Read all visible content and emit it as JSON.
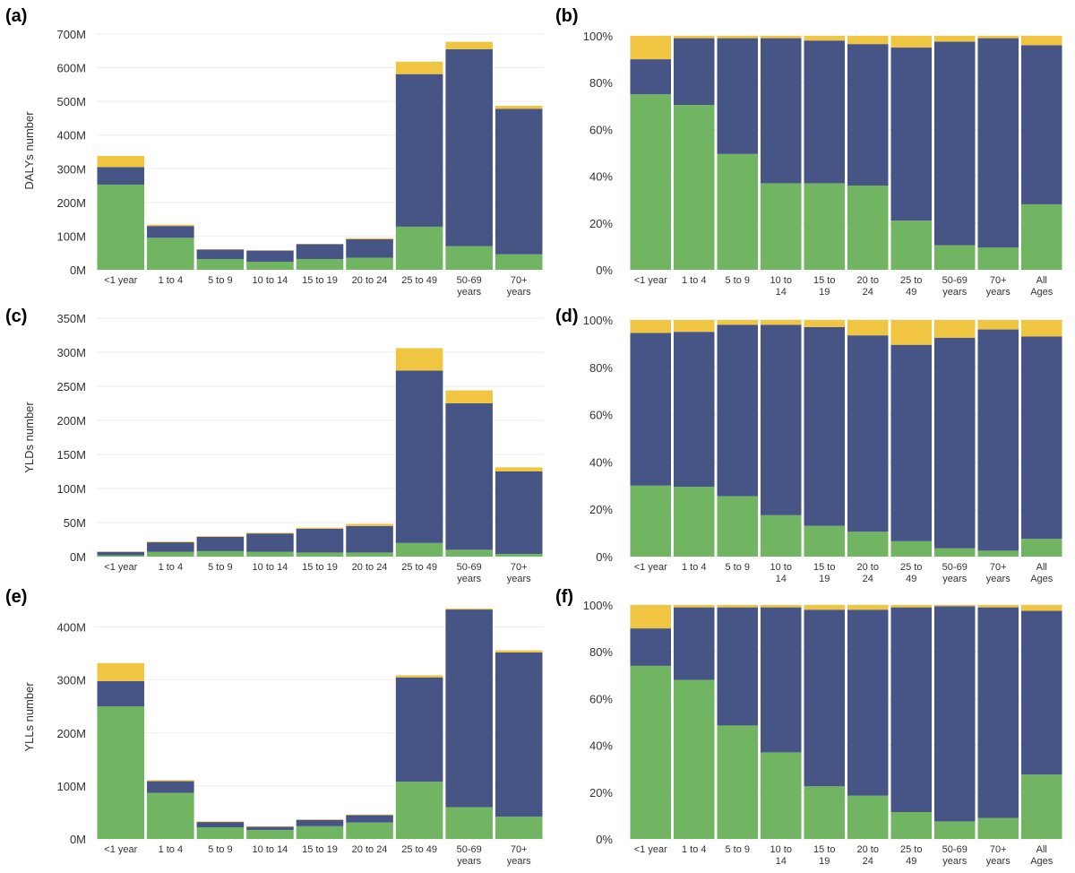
{
  "colors": {
    "green": "#71b462",
    "navy": "#475486",
    "yellow": "#efc541"
  },
  "chart_data": [
    {
      "panel": "(a)",
      "type": "bar",
      "stacked": true,
      "normalized": false,
      "ylabel": "DALYs number",
      "ylim": [
        0,
        700
      ],
      "yticks": [
        0,
        100,
        200,
        300,
        400,
        500,
        600,
        700
      ],
      "ytick_labels": [
        "0M",
        "100M",
        "200M",
        "300M",
        "400M",
        "500M",
        "600M",
        "700M"
      ],
      "categories": [
        "<1 year",
        "1 to 4",
        "5 to 9",
        "10 to 14",
        "15 to 19",
        "20 to 24",
        "25 to 49",
        "50-69\nyears",
        "70+\nyears"
      ],
      "series": [
        {
          "name": "green",
          "color": "#71b462",
          "values": [
            253,
            95,
            32,
            24,
            32,
            36,
            128,
            70,
            46
          ]
        },
        {
          "name": "navy",
          "color": "#475486",
          "values": [
            52,
            35,
            28,
            33,
            44,
            55,
            453,
            585,
            432
          ]
        },
        {
          "name": "yellow",
          "color": "#efc541",
          "values": [
            33,
            4,
            1,
            1,
            1,
            3,
            37,
            22,
            9
          ]
        }
      ]
    },
    {
      "panel": "(b)",
      "type": "bar",
      "stacked": true,
      "normalized": true,
      "ylabel": "",
      "ylim": [
        0,
        100
      ],
      "yticks": [
        0,
        20,
        40,
        60,
        80,
        100
      ],
      "ytick_labels": [
        "0%",
        "20%",
        "40%",
        "60%",
        "80%",
        "100%"
      ],
      "categories": [
        "<1 year",
        "1 to 4",
        "5 to 9",
        "10 to\n14",
        "15 to\n19",
        "20 to\n24",
        "25 to\n49",
        "50-69\nyears",
        "70+\nyears",
        "All\nAges"
      ],
      "series": [
        {
          "name": "green",
          "color": "#71b462",
          "values": [
            75,
            70.5,
            49.5,
            37,
            37,
            36,
            21,
            10.5,
            9.5,
            28
          ]
        },
        {
          "name": "navy",
          "color": "#475486",
          "values": [
            15,
            28.5,
            49.5,
            62,
            61,
            60.5,
            74,
            87,
            89.5,
            68
          ]
        },
        {
          "name": "yellow",
          "color": "#efc541",
          "values": [
            10,
            1,
            1,
            1,
            2,
            3.5,
            5,
            2.5,
            1,
            4
          ]
        }
      ]
    },
    {
      "panel": "(c)",
      "type": "bar",
      "stacked": true,
      "normalized": false,
      "ylabel": "YLDs number",
      "ylim": [
        0,
        350
      ],
      "yticks": [
        0,
        50,
        100,
        150,
        200,
        250,
        300,
        350
      ],
      "ytick_labels": [
        "0M",
        "50M",
        "100M",
        "150M",
        "200M",
        "250M",
        "300M",
        "350M"
      ],
      "categories": [
        "<1 year",
        "1 to 4",
        "5 to 9",
        "10 to 14",
        "15 to 19",
        "20 to 24",
        "25 to 49",
        "50-69\nyears",
        "70+\nyears"
      ],
      "series": [
        {
          "name": "green",
          "color": "#71b462",
          "values": [
            2,
            7,
            8,
            7,
            6,
            6,
            20,
            10,
            4
          ]
        },
        {
          "name": "navy",
          "color": "#475486",
          "values": [
            5,
            14,
            21,
            27,
            35,
            39,
            253,
            215,
            121
          ]
        },
        {
          "name": "yellow",
          "color": "#efc541",
          "values": [
            0.5,
            1,
            1,
            1,
            1.5,
            3,
            33,
            19,
            6
          ]
        }
      ]
    },
    {
      "panel": "(d)",
      "type": "bar",
      "stacked": true,
      "normalized": true,
      "ylabel": "",
      "ylim": [
        0,
        100
      ],
      "yticks": [
        0,
        20,
        40,
        60,
        80,
        100
      ],
      "ytick_labels": [
        "0%",
        "20%",
        "40%",
        "60%",
        "80%",
        "100%"
      ],
      "categories": [
        "<1 year",
        "1 to 4",
        "5 to 9",
        "10 to\n14",
        "15 to\n19",
        "20 to\n24",
        "25 to\n49",
        "50-69\nyears",
        "70+\nyears",
        "All\nAges"
      ],
      "series": [
        {
          "name": "green",
          "color": "#71b462",
          "values": [
            30,
            29.5,
            25.5,
            17.5,
            13,
            10.5,
            6.5,
            3.5,
            2.5,
            7.5
          ]
        },
        {
          "name": "navy",
          "color": "#475486",
          "values": [
            64.5,
            65.5,
            72.5,
            80.5,
            84,
            83,
            83,
            89,
            93.5,
            85.5
          ]
        },
        {
          "name": "yellow",
          "color": "#efc541",
          "values": [
            5.5,
            5,
            2,
            2,
            3,
            6.5,
            10.5,
            7.5,
            4,
            7
          ]
        }
      ]
    },
    {
      "panel": "(e)",
      "type": "bar",
      "stacked": true,
      "normalized": false,
      "ylabel": "YLLs number",
      "ylim": [
        0,
        450
      ],
      "yticks": [
        0,
        100,
        200,
        300,
        400
      ],
      "ytick_labels": [
        "0M",
        "100M",
        "200M",
        "300M",
        "400M"
      ],
      "categories": [
        "<1 year",
        "1 to 4",
        "5 to 9",
        "10 to 14",
        "15 to 19",
        "20 to 24",
        "25 to 49",
        "50-69\nyears",
        "70+\nyears"
      ],
      "series": [
        {
          "name": "green",
          "color": "#71b462",
          "values": [
            250,
            87,
            22,
            17,
            24,
            31,
            108,
            60,
            42
          ]
        },
        {
          "name": "navy",
          "color": "#475486",
          "values": [
            48,
            22,
            10,
            6,
            12,
            14,
            197,
            373,
            310
          ]
        },
        {
          "name": "yellow",
          "color": "#efc541",
          "values": [
            34,
            2,
            1,
            1,
            1,
            1,
            4,
            2,
            4
          ]
        }
      ]
    },
    {
      "panel": "(f)",
      "type": "bar",
      "stacked": true,
      "normalized": true,
      "ylabel": "",
      "ylim": [
        0,
        100
      ],
      "yticks": [
        0,
        20,
        40,
        60,
        80,
        100
      ],
      "ytick_labels": [
        "0%",
        "20%",
        "40%",
        "60%",
        "80%",
        "100%"
      ],
      "categories": [
        "<1 year",
        "1 to 4",
        "5 to 9",
        "10 to\n14",
        "15 to\n19",
        "20 to\n24",
        "25 to\n49",
        "50-69\nyears",
        "70+\nyears",
        "All\nAges"
      ],
      "series": [
        {
          "name": "green",
          "color": "#71b462",
          "values": [
            74,
            68,
            48.5,
            37,
            22.5,
            18.5,
            11.5,
            7.5,
            9,
            27.5
          ]
        },
        {
          "name": "navy",
          "color": "#475486",
          "values": [
            16,
            31,
            50.5,
            62,
            75.5,
            79.5,
            87.5,
            92,
            90,
            70
          ]
        },
        {
          "name": "yellow",
          "color": "#efc541",
          "values": [
            10,
            1,
            1,
            1,
            2,
            2,
            1,
            0.5,
            1,
            2.5
          ]
        }
      ]
    }
  ]
}
